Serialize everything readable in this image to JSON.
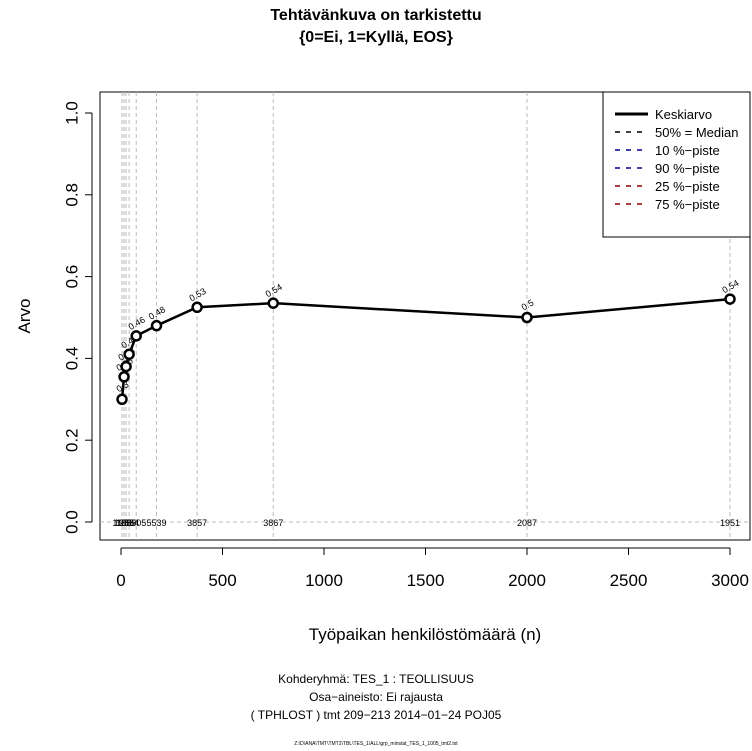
{
  "title_line1": "Tehtävänkuva on tarkistettu",
  "title_line2": "{0=Ei, 1=Kyllä, EOS}",
  "footer": {
    "line1": "Kohderyhmä:  TES_1 : TEOLLISUUS",
    "line2": "Osa−aineisto:  Ei rajausta",
    "line3": "( TPHLOST )  tmt 209−213 2014−01−24 POJ05",
    "path": "Z:\\D\\ANA\\TMT\\TMT2\\TBL\\TES_1\\ALL\\grp_minstat_TES_1_1005_tmt2.txt"
  },
  "chart_data": {
    "type": "line",
    "xlabel": "Työpaikan henkilöstömäärä (n)",
    "ylabel": "Arvo",
    "xlim": [
      -50,
      3000
    ],
    "ylim": [
      0,
      1
    ],
    "x_ticks": [
      0,
      500,
      1000,
      1500,
      2000,
      2500,
      3000
    ],
    "x_tick_labels": [
      "0",
      "500",
      "1000",
      "1500",
      "2000",
      "2500",
      "3000"
    ],
    "y_ticks": [
      0,
      0.2,
      0.4,
      0.6,
      0.8,
      1.0
    ],
    "y_tick_labels": [
      "0.0",
      "0.2",
      "0.4",
      "0.6",
      "0.8",
      "1.0"
    ],
    "legend_position": "top-right",
    "legend": [
      {
        "label": "Keskiarvo",
        "color": "#000000",
        "style": "solid"
      },
      {
        "label": "50% = Median",
        "color": "#000000",
        "style": "dashed"
      },
      {
        "label": "10 %−piste",
        "color": "#00008b",
        "style": "dashed"
      },
      {
        "label": "90 %−piste",
        "color": "#00008b",
        "style": "dashed"
      },
      {
        "label": "25 %−piste",
        "color": "#8b0000",
        "style": "dashed"
      },
      {
        "label": "75 %−piste",
        "color": "#8b0000",
        "style": "dashed"
      }
    ],
    "series": [
      {
        "name": "Keskiarvo",
        "x": [
          5,
          15,
          25,
          40,
          75,
          175,
          375,
          750,
          2000,
          3000
        ],
        "y": [
          0.3,
          0.355,
          0.38,
          0.41,
          0.455,
          0.48,
          0.525,
          0.535,
          0.5,
          0.545
        ],
        "point_labels": [
          "0.3",
          "0.36",
          "0.38",
          "0.41",
          "0.46",
          "0.48",
          "0.53",
          "0.54",
          "0.5",
          "0.54"
        ]
      }
    ],
    "count_labels": [
      {
        "x": 5,
        "text": "1108"
      },
      {
        "x": 15,
        "text": "1983"
      },
      {
        "x": 25,
        "text": "1655"
      },
      {
        "x": 40,
        "text": "2554"
      },
      {
        "x": 75,
        "text": "3905"
      },
      {
        "x": 175,
        "text": "5539"
      },
      {
        "x": 375,
        "text": "3857"
      },
      {
        "x": 750,
        "text": "3867"
      },
      {
        "x": 2000,
        "text": "2087"
      },
      {
        "x": 3000,
        "text": "1951"
      }
    ]
  }
}
